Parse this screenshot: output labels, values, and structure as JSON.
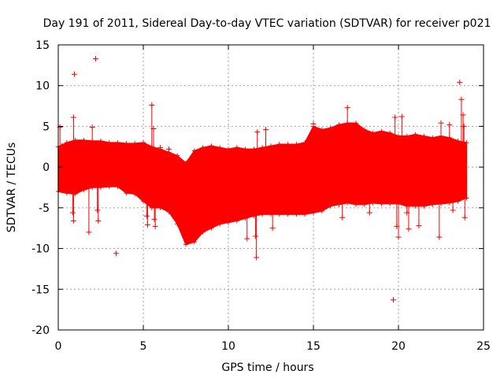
{
  "chart_data": {
    "type": "scatter",
    "title": "Day 191 of 2011, Sidereal Day-to-day VTEC variation (SDTVAR) for receiver p021",
    "xlabel": "GPS time / hours",
    "ylabel": "SDTVAR / TECUs",
    "xlim": [
      0,
      25
    ],
    "ylim": [
      -20,
      15
    ],
    "x_ticks": [
      0,
      5,
      10,
      15,
      20,
      25
    ],
    "y_ticks": [
      -20,
      -15,
      -10,
      -5,
      0,
      5,
      10,
      15
    ],
    "grid": true,
    "marker": "+",
    "color": "#ff0000",
    "x_range_of_data": [
      0,
      24
    ],
    "envelope": {
      "x": [
        0,
        0.5,
        1,
        1.5,
        2,
        2.5,
        3,
        3.5,
        4,
        4.5,
        5,
        5.5,
        6,
        6.5,
        7,
        7.5,
        8,
        8.5,
        9,
        9.5,
        10,
        10.5,
        11,
        11.5,
        12,
        12.5,
        13,
        13.5,
        14,
        14.5,
        15,
        15.5,
        16,
        16.5,
        17,
        17.5,
        18,
        18.5,
        19,
        19.5,
        20,
        20.5,
        21,
        21.5,
        22,
        22.5,
        23,
        23.5,
        24
      ],
      "upper": [
        2.5,
        3,
        3.3,
        3.3,
        3.2,
        3.2,
        3.0,
        3.0,
        2.9,
        2.9,
        3.0,
        2.5,
        2.2,
        1.8,
        1.4,
        0.5,
        2.0,
        2.4,
        2.6,
        2.4,
        2.2,
        2.4,
        2.2,
        2.2,
        2.4,
        2.6,
        2.8,
        2.8,
        2.8,
        3.0,
        5.0,
        4.6,
        4.8,
        5.2,
        5.4,
        5.4,
        4.6,
        4.2,
        4.4,
        4.2,
        3.8,
        3.8,
        4.0,
        3.8,
        3.6,
        3.8,
        3.6,
        3.2,
        3.0
      ],
      "lower": [
        -3,
        -3.2,
        -3.3,
        -2.8,
        -2.5,
        -2.5,
        -2.4,
        -2.4,
        -3.2,
        -3.3,
        -4.2,
        -5.0,
        -5.0,
        -5.5,
        -7.0,
        -9.5,
        -9.2,
        -8.0,
        -7.5,
        -7.0,
        -6.8,
        -6.6,
        -6.3,
        -6.0,
        -5.8,
        -5.8,
        -5.8,
        -5.8,
        -5.8,
        -5.8,
        -5.6,
        -5.4,
        -4.8,
        -4.6,
        -4.4,
        -4.6,
        -4.6,
        -4.4,
        -4.5,
        -4.5,
        -4.5,
        -4.8,
        -4.8,
        -4.8,
        -4.6,
        -4.5,
        -4.4,
        -4.2,
        -3.8
      ]
    },
    "outliers": [
      {
        "x": 0.1,
        "y": 4.9
      },
      {
        "x": 0.2,
        "y": 2.6
      },
      {
        "x": 0.9,
        "y": 6.1
      },
      {
        "x": 0.95,
        "y": 11.4
      },
      {
        "x": 0.85,
        "y": -5.6
      },
      {
        "x": 0.9,
        "y": -6.6
      },
      {
        "x": 1.8,
        "y": -8.0
      },
      {
        "x": 2.0,
        "y": 4.9
      },
      {
        "x": 2.2,
        "y": 13.3
      },
      {
        "x": 2.3,
        "y": -5.3
      },
      {
        "x": 2.35,
        "y": -6.6
      },
      {
        "x": 3.4,
        "y": -10.6
      },
      {
        "x": 5.2,
        "y": -6.0
      },
      {
        "x": 5.25,
        "y": -7.1
      },
      {
        "x": 5.5,
        "y": 7.6
      },
      {
        "x": 5.6,
        "y": 4.7
      },
      {
        "x": 5.65,
        "y": -6.4
      },
      {
        "x": 5.7,
        "y": -7.3
      },
      {
        "x": 6.0,
        "y": 2.4
      },
      {
        "x": 6.5,
        "y": 2.2
      },
      {
        "x": 11.1,
        "y": -8.8
      },
      {
        "x": 11.6,
        "y": -8.5
      },
      {
        "x": 11.65,
        "y": -11.1
      },
      {
        "x": 11.7,
        "y": 4.3
      },
      {
        "x": 12.2,
        "y": 4.6
      },
      {
        "x": 12.6,
        "y": -7.5
      },
      {
        "x": 15.0,
        "y": 5.3
      },
      {
        "x": 17.0,
        "y": 7.3
      },
      {
        "x": 16.7,
        "y": -6.2
      },
      {
        "x": 18.3,
        "y": -5.6
      },
      {
        "x": 19.7,
        "y": -16.3
      },
      {
        "x": 19.8,
        "y": 6.1
      },
      {
        "x": 19.9,
        "y": -7.3
      },
      {
        "x": 20.0,
        "y": -8.6
      },
      {
        "x": 20.2,
        "y": 6.2
      },
      {
        "x": 20.5,
        "y": -5.6
      },
      {
        "x": 20.6,
        "y": -7.6
      },
      {
        "x": 21.2,
        "y": -7.2
      },
      {
        "x": 22.4,
        "y": -8.6
      },
      {
        "x": 22.5,
        "y": 5.4
      },
      {
        "x": 23.0,
        "y": 5.2
      },
      {
        "x": 23.2,
        "y": -5.3
      },
      {
        "x": 23.6,
        "y": 10.4
      },
      {
        "x": 23.7,
        "y": 8.3
      },
      {
        "x": 23.8,
        "y": 6.4
      },
      {
        "x": 23.9,
        "y": -6.2
      },
      {
        "x": 23.85,
        "y": 5.0
      }
    ]
  }
}
